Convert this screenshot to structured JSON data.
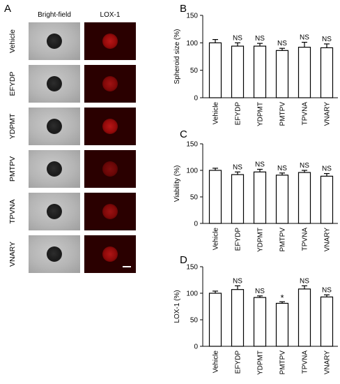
{
  "panel_letters": {
    "a": "A",
    "b": "B",
    "c": "C",
    "d": "D"
  },
  "panel_a": {
    "column_headers": [
      "Bright-field",
      "LOX-1"
    ],
    "rows": [
      {
        "label": "Vehicle",
        "lox_intensity": 0.75
      },
      {
        "label": "EFYDP",
        "lox_intensity": 0.62
      },
      {
        "label": "YDPMT",
        "lox_intensity": 0.75
      },
      {
        "label": "PMTPV",
        "lox_intensity": 0.45
      },
      {
        "label": "TPVNA",
        "lox_intensity": 0.6
      },
      {
        "label": "VNARY",
        "lox_intensity": 0.7
      }
    ],
    "colors": {
      "lox_background": "#2a0000",
      "lox_signal": "#d01010"
    }
  },
  "chart_data": [
    {
      "type": "bar",
      "panel": "B",
      "ylabel": "Spheroid size  (%)",
      "ylim": [
        0,
        150
      ],
      "yticks": [
        0,
        50,
        100,
        150
      ],
      "categories": [
        "Vehicle",
        "EFYDP",
        "YDPMT",
        "PMTPV",
        "TPVNA",
        "VNARY"
      ],
      "values": [
        100,
        94,
        94,
        86,
        92,
        91
      ],
      "errors": [
        6,
        6,
        5,
        4,
        9,
        7
      ],
      "annotations": [
        "",
        "NS",
        "NS",
        "NS",
        "NS",
        "NS"
      ]
    },
    {
      "type": "bar",
      "panel": "C",
      "ylabel": "Viability  (%)",
      "ylim": [
        0,
        150
      ],
      "yticks": [
        0,
        50,
        100,
        150
      ],
      "categories": [
        "Vehicle",
        "EFYDP",
        "YDPMT",
        "PMTPV",
        "TPVNA",
        "VNARY"
      ],
      "values": [
        100,
        92,
        97,
        91,
        96,
        89
      ],
      "errors": [
        4,
        5,
        5,
        4,
        4,
        5
      ],
      "annotations": [
        "",
        "NS",
        "NS",
        "NS",
        "NS",
        "NS"
      ]
    },
    {
      "type": "bar",
      "panel": "D",
      "ylabel": "LOX-1  (%)",
      "ylim": [
        0,
        150
      ],
      "yticks": [
        0,
        50,
        100,
        150
      ],
      "categories": [
        "Vehicle",
        "EFYDP",
        "YDPMT",
        "PMTPV",
        "TPVNA",
        "VNARY"
      ],
      "values": [
        100,
        107,
        92,
        81,
        108,
        93
      ],
      "errors": [
        4,
        7,
        3,
        3,
        6,
        4
      ],
      "annotations": [
        "",
        "NS",
        "NS",
        "*",
        "NS",
        "NS"
      ]
    }
  ]
}
